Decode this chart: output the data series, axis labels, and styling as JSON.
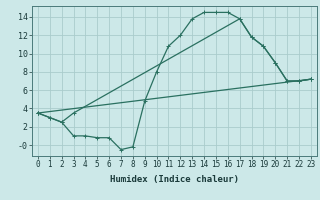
{
  "xlabel": "Humidex (Indice chaleur)",
  "bg_color": "#cce8e8",
  "grid_color": "#aacccc",
  "line_color": "#2a7060",
  "xlim": [
    -0.5,
    23.5
  ],
  "ylim": [
    -1.2,
    15.2
  ],
  "yticks": [
    0,
    2,
    4,
    6,
    8,
    10,
    12,
    14
  ],
  "ytick_labels": [
    "-0",
    "2",
    "4",
    "6",
    "8",
    "10",
    "12",
    "14"
  ],
  "xticks": [
    0,
    1,
    2,
    3,
    4,
    5,
    6,
    7,
    8,
    9,
    10,
    11,
    12,
    13,
    14,
    15,
    16,
    17,
    18,
    19,
    20,
    21,
    22,
    23
  ],
  "line1_x": [
    0,
    1,
    2,
    3,
    4,
    5,
    6,
    7,
    8,
    9,
    10,
    11,
    12,
    13,
    14,
    15,
    16,
    17,
    18,
    19,
    20,
    21,
    22,
    23
  ],
  "line1_y": [
    3.5,
    3.0,
    2.5,
    1.0,
    1.0,
    0.8,
    0.8,
    -0.5,
    -0.2,
    4.8,
    8.0,
    10.8,
    12.0,
    13.8,
    14.5,
    14.5,
    14.5,
    13.8,
    11.8,
    10.8,
    9.0,
    7.0,
    7.0,
    7.2
  ],
  "line2_x": [
    0,
    1,
    2,
    3,
    17,
    18,
    19,
    20,
    21,
    22,
    23
  ],
  "line2_y": [
    3.5,
    3.0,
    2.5,
    3.5,
    13.8,
    11.8,
    10.8,
    9.0,
    7.0,
    7.0,
    7.2
  ],
  "line3_x": [
    0,
    23
  ],
  "line3_y": [
    3.5,
    7.2
  ],
  "tick_fontsize": 5.5,
  "label_fontsize": 6.5
}
